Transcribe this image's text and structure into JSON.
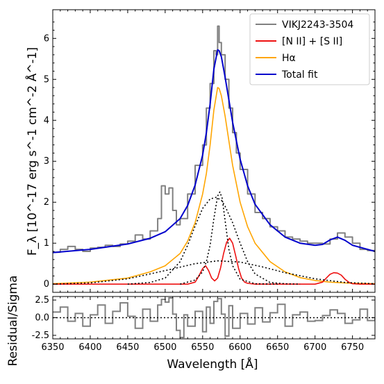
{
  "chart_data": [
    {
      "type": "line",
      "title": "",
      "ylabel": "F_λ [10^-17 erg s^-1 cm^-2 Å^-1]",
      "xlim": [
        6350,
        6780
      ],
      "ylim": [
        -0.2,
        6.7
      ],
      "y_ticks": [
        0,
        1,
        2,
        3,
        4,
        5,
        6
      ],
      "legend": {
        "placement": "top-right",
        "entries": [
          {
            "label": "VIKJ2243-3504",
            "color": "#808080"
          },
          {
            "label": "[N II] + [S II]",
            "color": "#ee1111"
          },
          {
            "label": "Hα",
            "color": "#ffa500"
          },
          {
            "label": "Total fit",
            "color": "#0000cc"
          }
        ]
      },
      "grid": false,
      "series": [
        {
          "name": "VIKJ2243-3504",
          "color": "#808080",
          "x": [
            6350,
            6360,
            6370,
            6380,
            6390,
            6400,
            6410,
            6420,
            6430,
            6440,
            6450,
            6460,
            6470,
            6480,
            6490,
            6495,
            6500,
            6505,
            6510,
            6515,
            6520,
            6530,
            6540,
            6550,
            6555,
            6560,
            6565,
            6568,
            6570,
            6572,
            6575,
            6580,
            6585,
            6590,
            6595,
            6600,
            6610,
            6620,
            6630,
            6640,
            6650,
            6660,
            6670,
            6680,
            6690,
            6700,
            6710,
            6720,
            6730,
            6740,
            6750,
            6760,
            6770,
            6780
          ],
          "values": [
            0.78,
            0.85,
            0.92,
            0.85,
            0.8,
            0.88,
            0.9,
            0.95,
            0.92,
            0.98,
            1.05,
            1.2,
            1.1,
            1.3,
            1.6,
            2.4,
            2.2,
            2.35,
            1.8,
            1.45,
            1.6,
            2.2,
            2.9,
            3.4,
            4.3,
            4.9,
            5.7,
            5.6,
            6.3,
            5.9,
            5.6,
            5.0,
            4.3,
            3.7,
            3.2,
            2.8,
            2.2,
            1.75,
            1.6,
            1.4,
            1.3,
            1.15,
            1.1,
            1.05,
            1.0,
            1.0,
            0.98,
            1.1,
            1.25,
            1.15,
            1.0,
            0.85,
            0.82,
            0.8
          ]
        },
        {
          "name": "Total fit",
          "color": "#0000cc",
          "x": [
            6350,
            6400,
            6450,
            6480,
            6500,
            6520,
            6530,
            6540,
            6550,
            6555,
            6560,
            6565,
            6570,
            6572,
            6575,
            6580,
            6585,
            6590,
            6600,
            6610,
            6620,
            6640,
            6660,
            6680,
            6700,
            6710,
            6720,
            6730,
            6740,
            6750,
            6780
          ],
          "values": [
            0.77,
            0.85,
            0.98,
            1.12,
            1.28,
            1.6,
            1.92,
            2.42,
            3.15,
            3.7,
            4.4,
            5.25,
            5.72,
            5.7,
            5.55,
            5.05,
            4.5,
            3.95,
            3.05,
            2.4,
            1.95,
            1.45,
            1.15,
            1.0,
            0.95,
            0.97,
            1.08,
            1.15,
            1.07,
            0.95,
            0.8
          ]
        },
        {
          "name": "Hα",
          "color": "#ffa500",
          "x": [
            6350,
            6400,
            6450,
            6480,
            6500,
            6520,
            6530,
            6540,
            6550,
            6555,
            6560,
            6565,
            6570,
            6572,
            6575,
            6580,
            6585,
            6590,
            6600,
            6610,
            6620,
            6640,
            6660,
            6680,
            6700,
            6720,
            6750,
            6780
          ],
          "values": [
            0.01,
            0.05,
            0.15,
            0.3,
            0.45,
            0.75,
            1.05,
            1.5,
            2.2,
            2.7,
            3.4,
            4.25,
            4.8,
            4.78,
            4.6,
            4.1,
            3.5,
            2.9,
            2.0,
            1.4,
            1.0,
            0.55,
            0.3,
            0.16,
            0.09,
            0.05,
            0.02,
            0.01
          ]
        },
        {
          "name": "[N II] + [S II]",
          "color": "#ee1111",
          "x": [
            6350,
            6530,
            6540,
            6545,
            6550,
            6554,
            6558,
            6562,
            6566,
            6570,
            6574,
            6578,
            6582,
            6586,
            6590,
            6594,
            6598,
            6602,
            6606,
            6610,
            6620,
            6700,
            6710,
            6715,
            6720,
            6725,
            6730,
            6735,
            6740,
            6745,
            6750,
            6760,
            6780
          ],
          "values": [
            0,
            0,
            0.05,
            0.2,
            0.38,
            0.45,
            0.33,
            0.15,
            0.08,
            0.15,
            0.4,
            0.75,
            1.02,
            1.12,
            1.0,
            0.7,
            0.38,
            0.15,
            0.05,
            0.02,
            0,
            0,
            0.05,
            0.15,
            0.24,
            0.28,
            0.27,
            0.22,
            0.12,
            0.05,
            0.01,
            0,
            0
          ]
        },
        {
          "name": "",
          "style": "dotted",
          "color": "#000000",
          "x": [
            6450,
            6480,
            6500,
            6520,
            6530,
            6540,
            6550,
            6560,
            6568,
            6575,
            6580,
            6590,
            6600,
            6610,
            6620,
            6640,
            6660,
            6680
          ],
          "values": [
            0,
            0.04,
            0.15,
            0.55,
            0.95,
            1.42,
            1.85,
            2.08,
            2.12,
            2.05,
            1.9,
            1.5,
            1.0,
            0.55,
            0.25,
            0.04,
            0.01,
            0
          ]
        },
        {
          "name": "",
          "style": "dotted",
          "color": "#000000",
          "x": [
            6520,
            6540,
            6550,
            6555,
            6560,
            6565,
            6570,
            6573,
            6576,
            6580,
            6585,
            6590,
            6600,
            6620,
            6650
          ],
          "values": [
            0,
            0.1,
            0.3,
            0.55,
            0.95,
            1.6,
            2.15,
            2.25,
            2.1,
            1.55,
            0.85,
            0.45,
            0.12,
            0.01,
            0
          ]
        },
        {
          "name": "",
          "style": "dotted",
          "color": "#000000",
          "x": [
            6350,
            6400,
            6450,
            6500,
            6540,
            6570,
            6600,
            6630,
            6660,
            6700,
            6740,
            6780
          ],
          "values": [
            0.0,
            0.03,
            0.13,
            0.33,
            0.5,
            0.57,
            0.54,
            0.42,
            0.28,
            0.13,
            0.04,
            0.01
          ]
        }
      ]
    },
    {
      "type": "line",
      "title": "",
      "xlabel": "Wavelength [Å]",
      "ylabel": "Residual/Sigma",
      "xlim": [
        6350,
        6780
      ],
      "ylim": [
        -3,
        3
      ],
      "x_ticks": [
        6350,
        6400,
        6450,
        6500,
        6550,
        6600,
        6650,
        6700,
        6750
      ],
      "y_ticks": [
        -2.5,
        0.0,
        2.5
      ],
      "grid": false,
      "series": [
        {
          "name": "Residual",
          "color": "#808080",
          "x": [
            6350,
            6360,
            6370,
            6380,
            6390,
            6400,
            6410,
            6420,
            6430,
            6440,
            6450,
            6460,
            6470,
            6480,
            6490,
            6495,
            6500,
            6505,
            6510,
            6515,
            6520,
            6525,
            6530,
            6540,
            6550,
            6555,
            6560,
            6565,
            6570,
            6575,
            6580,
            6585,
            6590,
            6600,
            6610,
            6620,
            6630,
            6640,
            6650,
            6660,
            6670,
            6680,
            6690,
            6700,
            6710,
            6720,
            6730,
            6740,
            6750,
            6760,
            6770,
            6780
          ],
          "values": [
            0.8,
            1.5,
            -0.5,
            0.6,
            -1.2,
            0.4,
            1.8,
            -0.8,
            0.9,
            2.1,
            0.2,
            -1.5,
            1.2,
            -0.5,
            1.8,
            2.6,
            2.2,
            2.8,
            0.5,
            -1.8,
            -2.8,
            0.4,
            -1.2,
            0.9,
            -2.0,
            1.5,
            -0.8,
            2.3,
            2.7,
            0.5,
            -2.6,
            1.7,
            -1.5,
            0.6,
            -0.9,
            1.4,
            -0.6,
            0.7,
            1.9,
            -1.2,
            0.4,
            0.8,
            -0.5,
            -0.4,
            0.3,
            1.1,
            0.6,
            -0.8,
            -0.3,
            1.2,
            -0.4,
            0.1
          ]
        },
        {
          "name": "",
          "style": "dotted",
          "color": "#000000",
          "x": [
            6350,
            6780
          ],
          "values": [
            0,
            0
          ]
        }
      ]
    }
  ]
}
